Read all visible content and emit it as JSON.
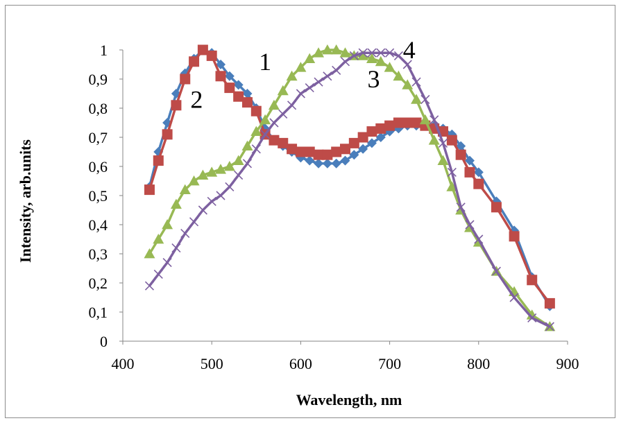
{
  "chart_data": {
    "type": "line",
    "title": "",
    "xlabel": "Wavelength, nm",
    "ylabel": "Intensity, arb.units",
    "xlim": [
      400,
      900
    ],
    "ylim": [
      0,
      1
    ],
    "x_ticks": [
      "400",
      "500",
      "600",
      "700",
      "800",
      "900"
    ],
    "y_ticks": [
      "0",
      "0,1",
      "0,2",
      "0,3",
      "0,4",
      "0,5",
      "0,6",
      "0,7",
      "0,8",
      "0,9",
      "1"
    ],
    "grid": false,
    "legend": "none",
    "series": [
      {
        "name": "1",
        "color": "#4a7ebb",
        "marker": "diamond",
        "x": [
          430,
          440,
          450,
          460,
          470,
          480,
          490,
          500,
          510,
          520,
          530,
          540,
          550,
          560,
          570,
          580,
          590,
          600,
          610,
          620,
          630,
          640,
          650,
          660,
          670,
          680,
          690,
          700,
          710,
          720,
          730,
          740,
          750,
          760,
          770,
          780,
          790,
          800,
          820,
          840,
          860,
          880
        ],
        "y": [
          0.53,
          0.65,
          0.75,
          0.85,
          0.92,
          0.97,
          1.0,
          0.99,
          0.95,
          0.91,
          0.88,
          0.85,
          0.8,
          0.73,
          0.69,
          0.67,
          0.65,
          0.63,
          0.62,
          0.61,
          0.61,
          0.61,
          0.62,
          0.64,
          0.66,
          0.68,
          0.7,
          0.72,
          0.73,
          0.74,
          0.74,
          0.74,
          0.74,
          0.73,
          0.71,
          0.67,
          0.62,
          0.58,
          0.48,
          0.38,
          0.22,
          0.12
        ]
      },
      {
        "name": "2",
        "color": "#be4b48",
        "marker": "square",
        "x": [
          430,
          440,
          450,
          460,
          470,
          480,
          490,
          500,
          510,
          520,
          530,
          540,
          550,
          560,
          570,
          580,
          590,
          600,
          610,
          620,
          630,
          640,
          650,
          660,
          670,
          680,
          690,
          700,
          710,
          720,
          730,
          740,
          750,
          760,
          770,
          780,
          790,
          800,
          820,
          840,
          860,
          880
        ],
        "y": [
          0.52,
          0.62,
          0.71,
          0.81,
          0.9,
          0.96,
          1.0,
          0.98,
          0.91,
          0.87,
          0.84,
          0.82,
          0.79,
          0.71,
          0.69,
          0.68,
          0.66,
          0.65,
          0.65,
          0.64,
          0.64,
          0.65,
          0.66,
          0.68,
          0.7,
          0.72,
          0.73,
          0.74,
          0.75,
          0.75,
          0.75,
          0.74,
          0.73,
          0.72,
          0.69,
          0.64,
          0.58,
          0.54,
          0.46,
          0.36,
          0.21,
          0.13
        ]
      },
      {
        "name": "3",
        "color": "#98b954",
        "marker": "triangle",
        "x": [
          430,
          440,
          450,
          460,
          470,
          480,
          490,
          500,
          510,
          520,
          530,
          540,
          550,
          560,
          570,
          580,
          590,
          600,
          610,
          620,
          630,
          640,
          650,
          660,
          670,
          680,
          690,
          700,
          710,
          720,
          730,
          740,
          750,
          760,
          770,
          780,
          790,
          800,
          820,
          840,
          860,
          880
        ],
        "y": [
          0.3,
          0.35,
          0.4,
          0.47,
          0.52,
          0.55,
          0.57,
          0.58,
          0.59,
          0.6,
          0.62,
          0.67,
          0.72,
          0.76,
          0.81,
          0.86,
          0.91,
          0.94,
          0.97,
          0.99,
          1.0,
          1.0,
          0.99,
          0.98,
          0.98,
          0.97,
          0.96,
          0.94,
          0.91,
          0.88,
          0.83,
          0.76,
          0.69,
          0.62,
          0.53,
          0.45,
          0.39,
          0.34,
          0.24,
          0.17,
          0.09,
          0.05
        ]
      },
      {
        "name": "4",
        "color": "#7d60a0",
        "marker": "x",
        "x": [
          430,
          440,
          450,
          460,
          470,
          480,
          490,
          500,
          510,
          520,
          530,
          540,
          550,
          560,
          570,
          580,
          590,
          600,
          610,
          620,
          630,
          640,
          650,
          660,
          670,
          680,
          690,
          700,
          710,
          720,
          730,
          740,
          750,
          760,
          770,
          780,
          790,
          800,
          820,
          840,
          860,
          880
        ],
        "y": [
          0.19,
          0.23,
          0.27,
          0.32,
          0.37,
          0.41,
          0.45,
          0.48,
          0.5,
          0.53,
          0.57,
          0.61,
          0.66,
          0.71,
          0.75,
          0.78,
          0.81,
          0.85,
          0.87,
          0.89,
          0.91,
          0.93,
          0.96,
          0.98,
          0.99,
          0.99,
          0.99,
          0.99,
          0.98,
          0.95,
          0.89,
          0.83,
          0.76,
          0.68,
          0.58,
          0.46,
          0.4,
          0.35,
          0.24,
          0.15,
          0.08,
          0.05
        ]
      }
    ],
    "curve_labels": [
      {
        "text": "1",
        "x": 560,
        "y": 0.96
      },
      {
        "text": "2",
        "x": 483,
        "y": 0.83
      },
      {
        "text": "3",
        "x": 682,
        "y": 0.9
      },
      {
        "text": "4",
        "x": 722,
        "y": 1.0
      }
    ]
  }
}
